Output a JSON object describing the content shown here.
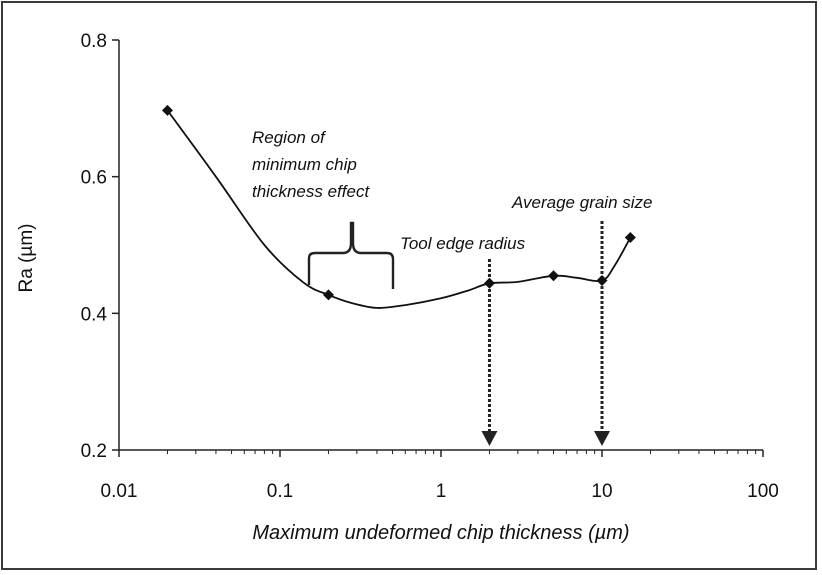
{
  "chart_data": {
    "type": "line",
    "xscale": "log",
    "xlim": [
      0.01,
      100
    ],
    "ylim": [
      0.2,
      0.8
    ],
    "xticks": [
      0.01,
      0.1,
      1,
      10,
      100
    ],
    "xtick_labels": [
      "0.01",
      "0.1",
      "1",
      "10",
      "100"
    ],
    "yticks": [
      0.2,
      0.4,
      0.6,
      0.8
    ],
    "ytick_labels": [
      "0.2",
      "0.4",
      "0.6",
      "0.8"
    ],
    "xlabel": "Maximum undeformed chip thickness (µm)",
    "ylabel": "Ra (µm)",
    "grid": false,
    "series": [
      {
        "markers": [
          {
            "x": 0.02,
            "y": 0.697
          },
          {
            "x": 0.2,
            "y": 0.427
          },
          {
            "x": 2,
            "y": 0.444
          },
          {
            "x": 5,
            "y": 0.455
          },
          {
            "x": 10,
            "y": 0.448
          },
          {
            "x": 15,
            "y": 0.511
          }
        ],
        "curve": [
          {
            "x": 0.02,
            "y": 0.697
          },
          {
            "x": 0.04,
            "y": 0.6
          },
          {
            "x": 0.08,
            "y": 0.5
          },
          {
            "x": 0.14,
            "y": 0.445
          },
          {
            "x": 0.2,
            "y": 0.427
          },
          {
            "x": 0.28,
            "y": 0.415
          },
          {
            "x": 0.4,
            "y": 0.408
          },
          {
            "x": 0.6,
            "y": 0.412
          },
          {
            "x": 1,
            "y": 0.422
          },
          {
            "x": 1.5,
            "y": 0.434
          },
          {
            "x": 2,
            "y": 0.444
          },
          {
            "x": 3,
            "y": 0.446
          },
          {
            "x": 5,
            "y": 0.455
          },
          {
            "x": 7,
            "y": 0.452
          },
          {
            "x": 10,
            "y": 0.448
          },
          {
            "x": 12,
            "y": 0.47
          },
          {
            "x": 15,
            "y": 0.511
          }
        ]
      }
    ],
    "annotations": {
      "region_label": [
        "Region of",
        "minimum chip",
        "thickness effect"
      ],
      "tool_edge_label": "Tool edge radius",
      "grain_size_label": "Average grain size"
    }
  }
}
